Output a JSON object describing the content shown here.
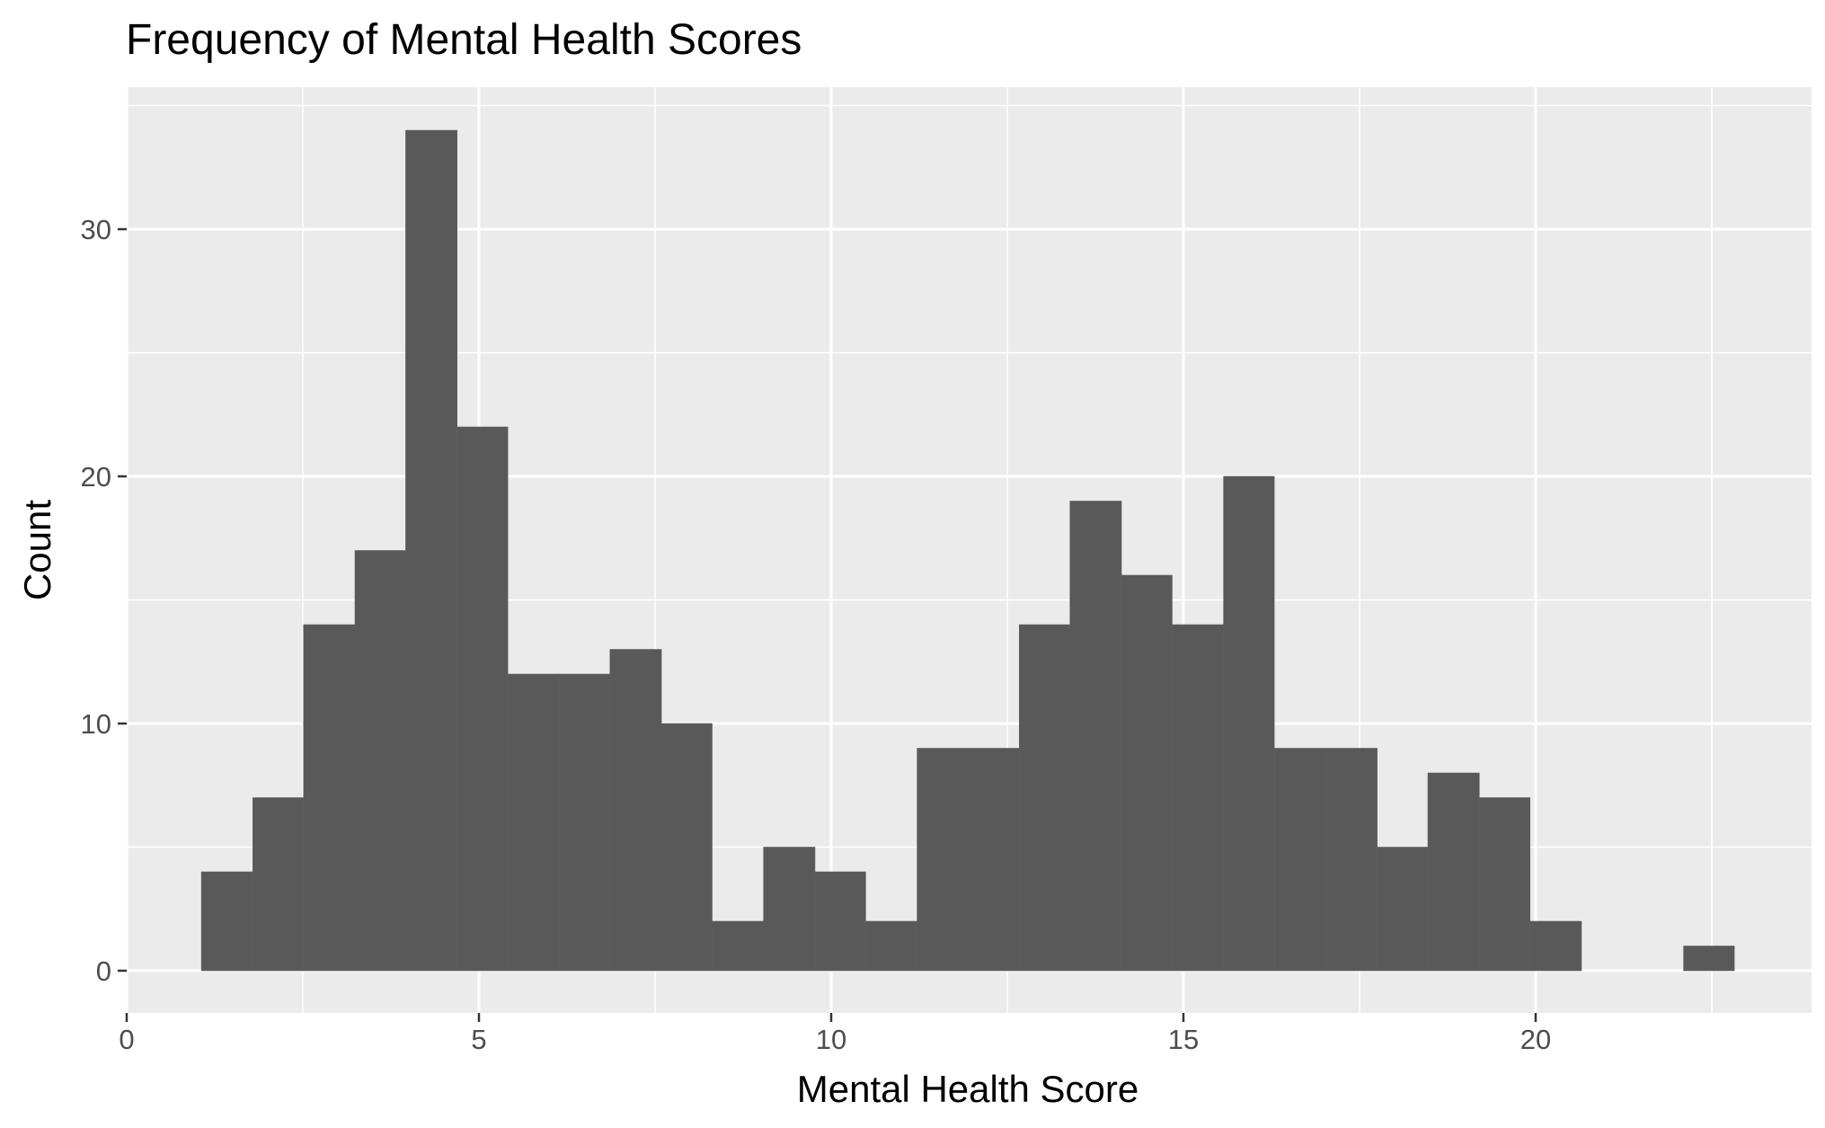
{
  "chart_data": {
    "type": "bar",
    "title": "Frequency of Mental Health Scores",
    "xlabel": "Mental Health Score",
    "ylabel": "Count",
    "xlim": [
      0,
      24
    ],
    "ylim": [
      0,
      35
    ],
    "x_ticks": [
      0,
      5,
      10,
      15,
      20
    ],
    "y_ticks": [
      0,
      10,
      20,
      30
    ],
    "x_tick_labels": [
      "0",
      "5",
      "10",
      "15",
      "20"
    ],
    "y_tick_labels": [
      "0",
      "10",
      "20",
      "30"
    ],
    "grid": true,
    "bins": [
      {
        "x0": 1.06,
        "x1": 1.79,
        "count": 4
      },
      {
        "x0": 1.79,
        "x1": 2.51,
        "count": 7
      },
      {
        "x0": 2.51,
        "x1": 3.24,
        "count": 14
      },
      {
        "x0": 3.24,
        "x1": 3.96,
        "count": 17
      },
      {
        "x0": 3.96,
        "x1": 4.69,
        "count": 34
      },
      {
        "x0": 4.69,
        "x1": 5.41,
        "count": 22
      },
      {
        "x0": 5.41,
        "x1": 6.14,
        "count": 12
      },
      {
        "x0": 6.14,
        "x1": 6.86,
        "count": 12
      },
      {
        "x0": 6.86,
        "x1": 7.59,
        "count": 13
      },
      {
        "x0": 7.59,
        "x1": 8.31,
        "count": 10
      },
      {
        "x0": 8.31,
        "x1": 9.04,
        "count": 2
      },
      {
        "x0": 9.04,
        "x1": 9.77,
        "count": 5
      },
      {
        "x0": 9.77,
        "x1": 10.49,
        "count": 4
      },
      {
        "x0": 10.49,
        "x1": 11.22,
        "count": 2
      },
      {
        "x0": 11.22,
        "x1": 11.94,
        "count": 9
      },
      {
        "x0": 11.94,
        "x1": 12.67,
        "count": 9
      },
      {
        "x0": 12.67,
        "x1": 13.39,
        "count": 14
      },
      {
        "x0": 13.39,
        "x1": 14.12,
        "count": 19
      },
      {
        "x0": 14.12,
        "x1": 14.84,
        "count": 16
      },
      {
        "x0": 14.84,
        "x1": 15.57,
        "count": 14
      },
      {
        "x0": 15.57,
        "x1": 16.29,
        "count": 20
      },
      {
        "x0": 16.29,
        "x1": 17.02,
        "count": 9
      },
      {
        "x0": 17.02,
        "x1": 17.75,
        "count": 9
      },
      {
        "x0": 17.75,
        "x1": 18.47,
        "count": 5
      },
      {
        "x0": 18.47,
        "x1": 19.2,
        "count": 8
      },
      {
        "x0": 19.2,
        "x1": 19.92,
        "count": 7
      },
      {
        "x0": 19.92,
        "x1": 20.65,
        "count": 2
      },
      {
        "x0": 20.65,
        "x1": 21.37,
        "count": 0
      },
      {
        "x0": 21.37,
        "x1": 22.1,
        "count": 0
      },
      {
        "x0": 22.1,
        "x1": 22.82,
        "count": 1
      }
    ],
    "colors": {
      "bar": "#595959",
      "panel": "#ebebeb",
      "grid": "#ffffff",
      "tick": "#333333",
      "tick_text": "#4d4d4d"
    }
  }
}
